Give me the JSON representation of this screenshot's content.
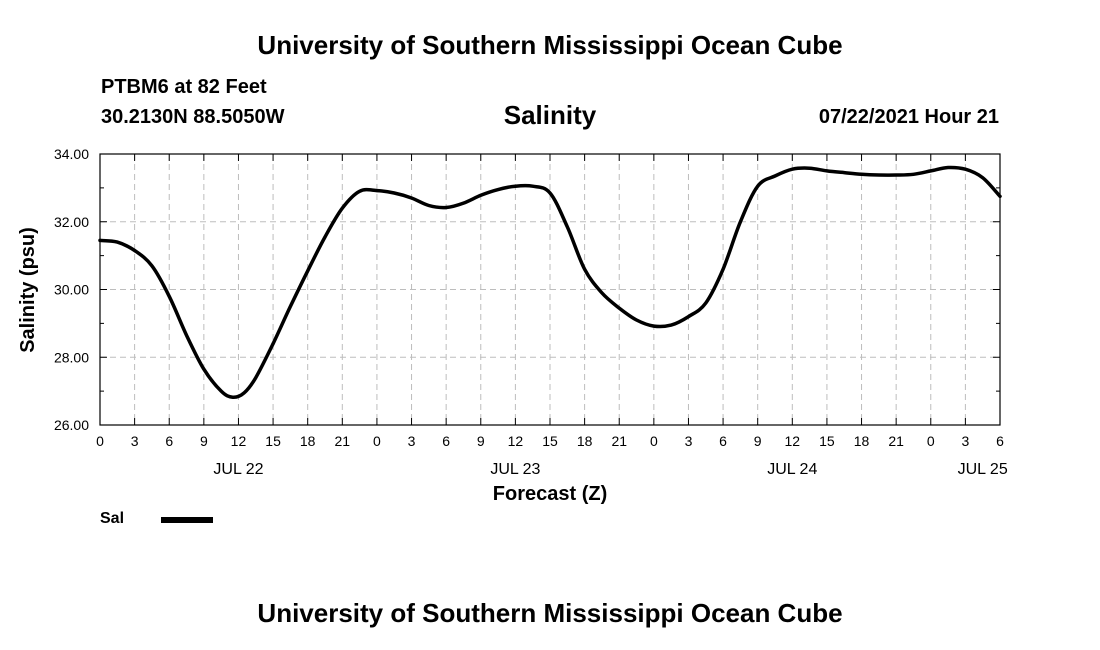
{
  "header": {
    "title": "University of Southern Mississippi Ocean Cube",
    "station": "PTBM6 at 82 Feet",
    "coordinates": "30.2130N  88.5050W",
    "variable": "Salinity",
    "datetime": "07/22/2021 Hour 21"
  },
  "footer": {
    "title": "University of Southern Mississippi Ocean Cube"
  },
  "legend": {
    "label": "Sal",
    "color": "#000000"
  },
  "chart_data": {
    "type": "line",
    "title": "Salinity",
    "xlabel": "Forecast (Z)",
    "ylabel": "Salinity (psu)",
    "ylim": [
      26,
      34
    ],
    "yticks": [
      "26.00",
      "28.00",
      "30.00",
      "32.00",
      "34.00"
    ],
    "xlim": [
      0,
      78
    ],
    "x_unit": "hours from JUL 22 00Z",
    "xtick_labels": [
      "0",
      "3",
      "6",
      "9",
      "12",
      "15",
      "18",
      "21",
      "0",
      "3",
      "6",
      "9",
      "12",
      "15",
      "18",
      "21",
      "0",
      "3",
      "6",
      "9",
      "12",
      "15",
      "18",
      "21",
      "0",
      "3",
      "6"
    ],
    "date_labels": [
      {
        "text": "JUL 22",
        "hour": 12
      },
      {
        "text": "JUL 23",
        "hour": 36
      },
      {
        "text": "JUL 24",
        "hour": 60
      },
      {
        "text": "JUL 25",
        "hour": 76.5
      }
    ],
    "grid": true,
    "series": [
      {
        "name": "Sal",
        "x": [
          0,
          1.5,
          3,
          4.5,
          6,
          7.5,
          9,
          10.5,
          11.5,
          12.5,
          13.5,
          15,
          16.5,
          18,
          19.5,
          21,
          22.5,
          24,
          25.5,
          27,
          28.5,
          30,
          31.5,
          33,
          34.5,
          36,
          37.5,
          39,
          40.5,
          42,
          43.5,
          45,
          46.5,
          48,
          49.5,
          51,
          52.5,
          54,
          55.5,
          57,
          58.5,
          60,
          61.5,
          63,
          64.5,
          66,
          67.5,
          69,
          70.5,
          72,
          73.5,
          75,
          76.5,
          78
        ],
        "y": [
          31.45,
          31.4,
          31.15,
          30.7,
          29.8,
          28.65,
          27.65,
          27.0,
          26.82,
          26.95,
          27.4,
          28.4,
          29.5,
          30.55,
          31.55,
          32.4,
          32.9,
          32.92,
          32.85,
          32.7,
          32.48,
          32.42,
          32.55,
          32.78,
          32.95,
          33.05,
          33.05,
          32.85,
          31.85,
          30.6,
          29.9,
          29.45,
          29.1,
          28.92,
          28.95,
          29.2,
          29.6,
          30.6,
          32.0,
          33.05,
          33.35,
          33.55,
          33.58,
          33.5,
          33.45,
          33.4,
          33.38,
          33.38,
          33.4,
          33.5,
          33.6,
          33.55,
          33.3,
          32.75
        ]
      }
    ]
  }
}
